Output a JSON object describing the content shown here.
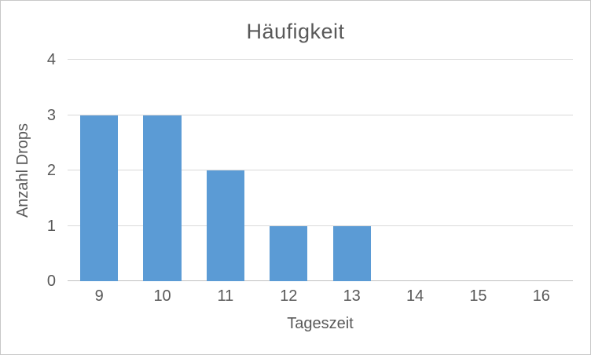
{
  "chart_data": {
    "type": "bar",
    "title": "Häufigkeit",
    "categories": [
      "9",
      "10",
      "11",
      "12",
      "13",
      "14",
      "15",
      "16"
    ],
    "values": [
      3,
      3,
      2,
      1,
      1,
      0,
      0,
      0
    ],
    "xlabel": "Tageszeit",
    "ylabel": "Anzahl Drops",
    "ylim": [
      0,
      4
    ],
    "yticks": [
      0,
      1,
      2,
      3,
      4
    ],
    "grid": true,
    "legend": false,
    "colors": {
      "bar": "#5B9BD5",
      "gridline": "#D9D9D9",
      "axis_line": "#BFBFBF",
      "text": "#595959",
      "chart_border": "#C8C8C8",
      "background": "#FFFFFF"
    }
  }
}
